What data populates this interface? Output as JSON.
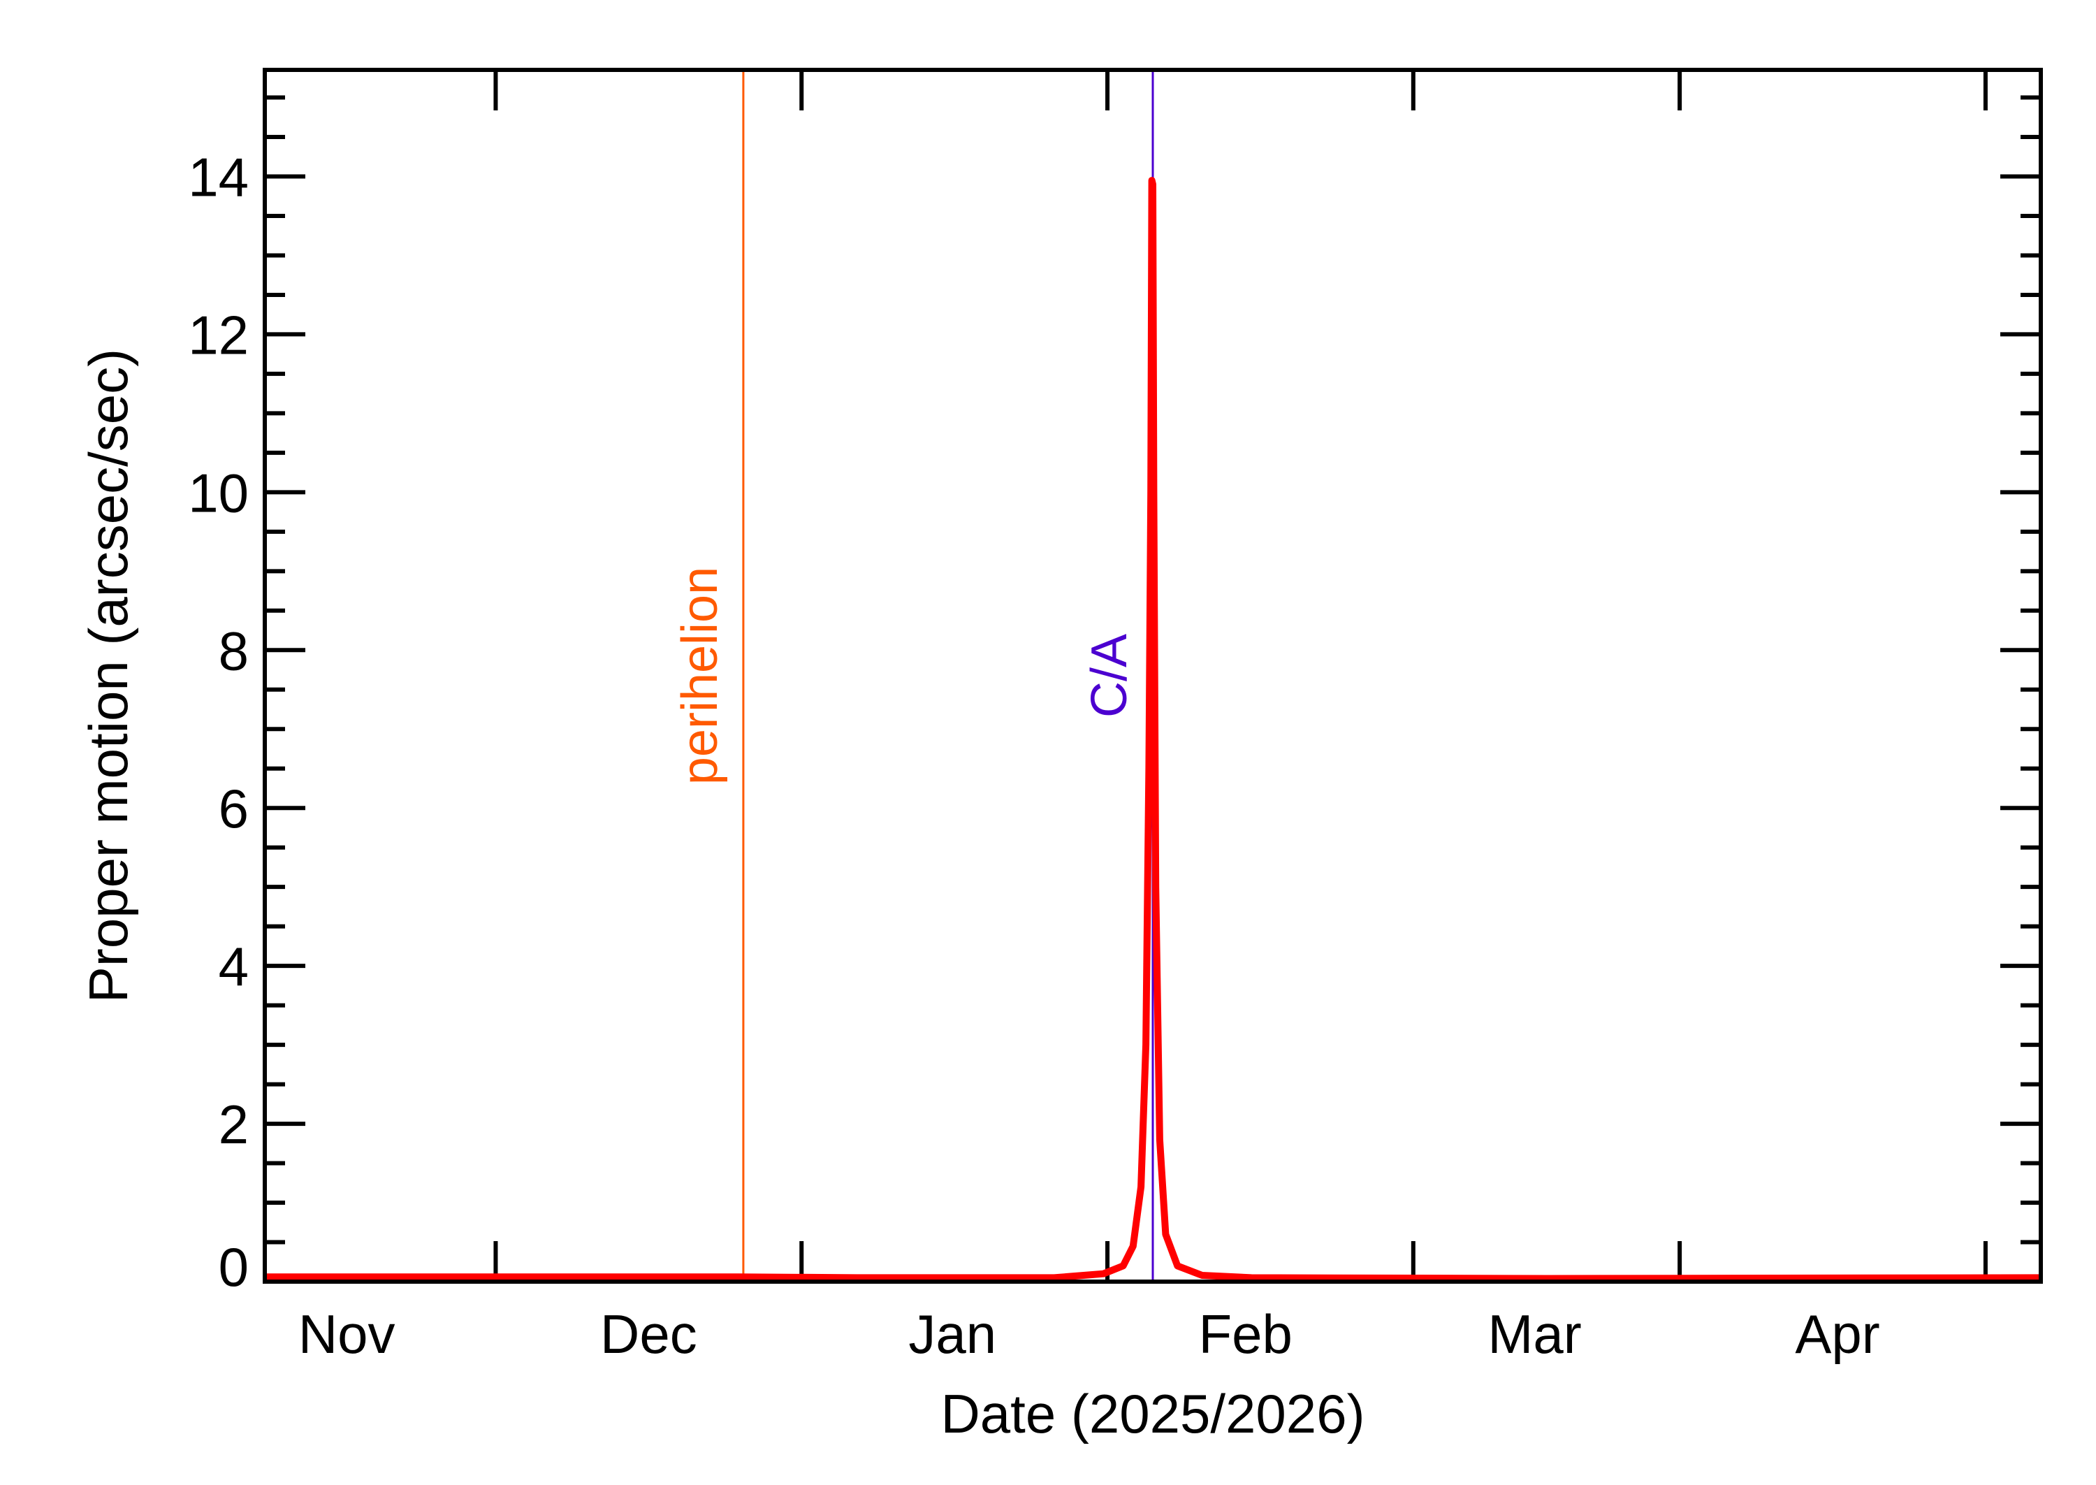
{
  "chart_data": {
    "type": "line",
    "xlabel": "Date (2025/2026)",
    "ylabel": "Proper motion (arcsec/sec)",
    "xlim": [
      0,
      180
    ],
    "ylim": [
      0,
      15.35
    ],
    "xticks": [
      23.4,
      54.4,
      85.4,
      116.4,
      143.4,
      174.4
    ],
    "xlabels": [
      {
        "value": 8.3,
        "label": "Nov"
      },
      {
        "value": 38.9,
        "label": "Dec"
      },
      {
        "value": 69.7,
        "label": "Jan"
      },
      {
        "value": 99.4,
        "label": "Feb"
      },
      {
        "value": 128.7,
        "label": "Mar"
      },
      {
        "value": 159.4,
        "label": "Apr"
      }
    ],
    "yticks": [
      0,
      2,
      4,
      6,
      8,
      10,
      12,
      14
    ],
    "yminorticks": [
      0.5,
      1,
      1.5,
      2.5,
      3,
      3.5,
      4.5,
      5,
      5.5,
      6.5,
      7,
      7.5,
      8.5,
      9,
      9.5,
      10.5,
      11,
      11.5,
      12.5,
      13,
      13.5,
      14.5,
      15
    ],
    "vlines": [
      {
        "x": 48.5,
        "label": "perihelion",
        "color": "#ff5a00"
      },
      {
        "x": 90.0,
        "label": "C/A",
        "color": "#4b00d0"
      }
    ],
    "series": [
      {
        "color": "#ff0000",
        "x": [
          0,
          20,
          48,
          60,
          80,
          85,
          87,
          88,
          88.8,
          89.3,
          89.6,
          89.8,
          89.9,
          90.0,
          90.1,
          90.3,
          90.7,
          91.3,
          92.5,
          95,
          100,
          130,
          180
        ],
        "values": [
          0.06,
          0.06,
          0.06,
          0.05,
          0.05,
          0.1,
          0.2,
          0.45,
          1.2,
          3,
          6.5,
          10,
          13.95,
          13.9,
          10,
          5,
          1.8,
          0.6,
          0.2,
          0.08,
          0.05,
          0.04,
          0.05
        ]
      }
    ]
  }
}
